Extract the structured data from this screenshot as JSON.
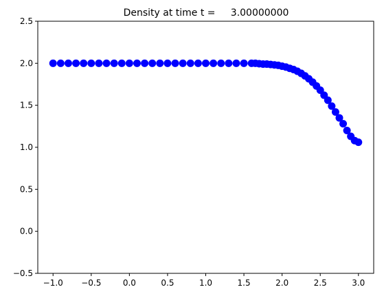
{
  "chart_data": {
    "type": "scatter",
    "title": "Density at time t =     3.00000000",
    "xlabel": "",
    "ylabel": "",
    "xlim": [
      -1.2,
      3.2
    ],
    "ylim": [
      -0.5,
      2.5
    ],
    "xticks": [
      -1.0,
      -0.5,
      0.0,
      0.5,
      1.0,
      1.5,
      2.0,
      2.5,
      3.0
    ],
    "xtick_labels": [
      "−1.0",
      "−0.5",
      "0.0",
      "0.5",
      "1.0",
      "1.5",
      "2.0",
      "2.5",
      "3.0"
    ],
    "yticks": [
      -0.5,
      0.0,
      0.5,
      1.0,
      1.5,
      2.0,
      2.5
    ],
    "ytick_labels": [
      "−0.5",
      "0.0",
      "0.5",
      "1.0",
      "1.5",
      "2.0",
      "2.5"
    ],
    "grid": false,
    "marker_color": "#0000ff",
    "series": [
      {
        "x": [
          -1.0,
          -0.9,
          -0.8,
          -0.7,
          -0.6,
          -0.5,
          -0.4,
          -0.3,
          -0.2,
          -0.1,
          0.0,
          0.1,
          0.2,
          0.3,
          0.4,
          0.5,
          0.6,
          0.7,
          0.8,
          0.9,
          1.0,
          1.1,
          1.2,
          1.3,
          1.4,
          1.5,
          1.6,
          1.65,
          1.7,
          1.75,
          1.8,
          1.85,
          1.9,
          1.95,
          2.0,
          2.05,
          2.1,
          2.15,
          2.2,
          2.25,
          2.3,
          2.35,
          2.4,
          2.45,
          2.5,
          2.55,
          2.6,
          2.65,
          2.7,
          2.75,
          2.8,
          2.85,
          2.9,
          2.95,
          3.0
        ],
        "y": [
          2.0,
          2.0,
          2.0,
          2.0,
          2.0,
          2.0,
          2.0,
          2.0,
          2.0,
          2.0,
          2.0,
          2.0,
          2.0,
          2.0,
          2.0,
          2.0,
          2.0,
          2.0,
          2.0,
          2.0,
          2.0,
          2.0,
          2.0,
          2.0,
          2.0,
          2.0,
          2.0,
          2.0,
          1.995,
          1.99,
          1.99,
          1.985,
          1.98,
          1.975,
          1.965,
          1.955,
          1.94,
          1.925,
          1.905,
          1.88,
          1.85,
          1.815,
          1.775,
          1.73,
          1.68,
          1.62,
          1.56,
          1.49,
          1.42,
          1.35,
          1.28,
          1.2,
          1.13,
          1.08,
          1.06
        ]
      }
    ]
  }
}
